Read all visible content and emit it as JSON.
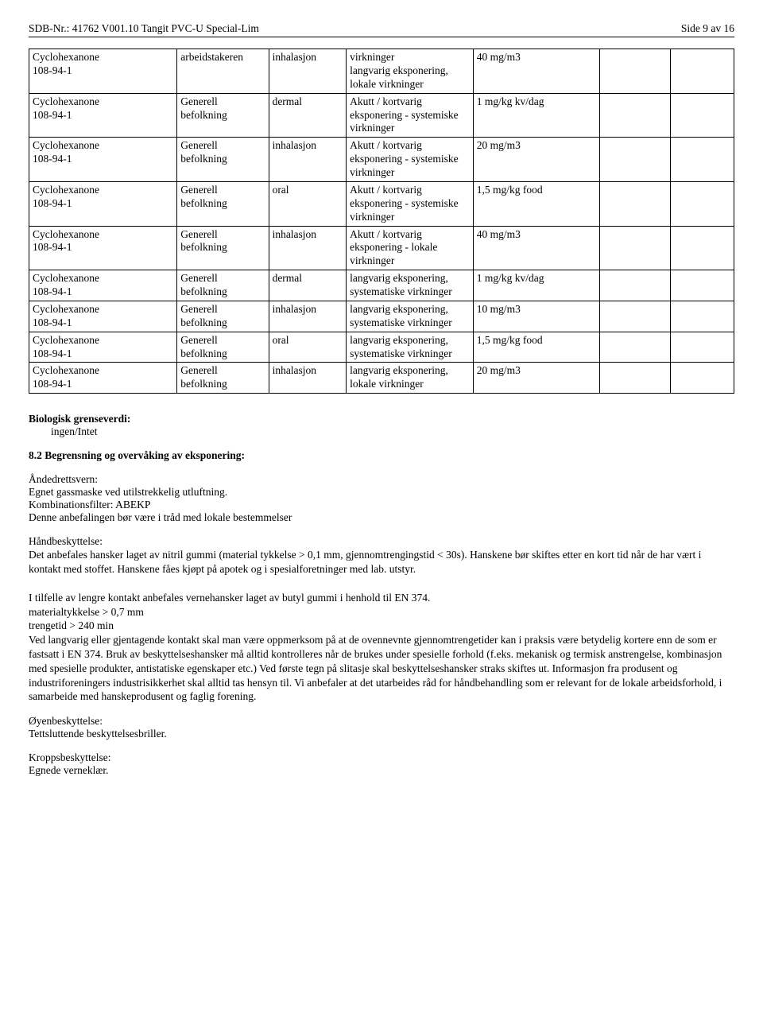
{
  "header": {
    "left": "SDB-Nr.: 41762   V001.10   Tangit PVC-U Special-Lim",
    "right": "Side 9 av 16"
  },
  "table": {
    "rows": [
      {
        "c1a": "Cyclohexanone",
        "c1b": "108-94-1",
        "c2": "arbeidstakeren",
        "c3": "inhalasjon",
        "c4": "virkninger\nlangvarig eksponering, lokale virkninger",
        "c5": "40 mg/m3"
      },
      {
        "c1a": "Cyclohexanone",
        "c1b": "108-94-1",
        "c2": "Generell befolkning",
        "c3": "dermal",
        "c4": "Akutt / kortvarig eksponering - systemiske virkninger",
        "c5": "1 mg/kg kv/dag"
      },
      {
        "c1a": "Cyclohexanone",
        "c1b": "108-94-1",
        "c2": "Generell befolkning",
        "c3": "inhalasjon",
        "c4": "Akutt / kortvarig eksponering - systemiske virkninger",
        "c5": "20 mg/m3"
      },
      {
        "c1a": "Cyclohexanone",
        "c1b": "108-94-1",
        "c2": "Generell befolkning",
        "c3": "oral",
        "c4": "Akutt / kortvarig eksponering - systemiske virkninger",
        "c5": "1,5 mg/kg food"
      },
      {
        "c1a": "Cyclohexanone",
        "c1b": "108-94-1",
        "c2": "Generell befolkning",
        "c3": "inhalasjon",
        "c4": "Akutt / kortvarig eksponering - lokale virkninger",
        "c5": "40 mg/m3"
      },
      {
        "c1a": "Cyclohexanone",
        "c1b": "108-94-1",
        "c2": "Generell befolkning",
        "c3": "dermal",
        "c4": "langvarig eksponering, systematiske virkninger",
        "c5": "1 mg/kg kv/dag"
      },
      {
        "c1a": "Cyclohexanone",
        "c1b": "108-94-1",
        "c2": "Generell befolkning",
        "c3": "inhalasjon",
        "c4": "langvarig eksponering, systematiske virkninger",
        "c5": "10 mg/m3"
      },
      {
        "c1a": "Cyclohexanone",
        "c1b": "108-94-1",
        "c2": "Generell befolkning",
        "c3": "oral",
        "c4": "langvarig eksponering, systematiske virkninger",
        "c5": "1,5 mg/kg food"
      },
      {
        "c1a": "Cyclohexanone",
        "c1b": "108-94-1",
        "c2": "Generell befolkning",
        "c3": "inhalasjon",
        "c4": "langvarig eksponering, lokale virkninger",
        "c5": "20 mg/m3"
      }
    ]
  },
  "body": {
    "biologisk_title": "Biologisk grenseverdi:",
    "biologisk_value": "ingen/Intet",
    "section82": "8.2 Begrensning og overvåking av eksponering:",
    "resp_title": "Åndedrettsvern:",
    "resp_l1": "Egnet gassmaske ved utilstrekkelig utluftning.",
    "resp_l2": "Kombinationsfilter: ABEKP",
    "resp_l3": "Denne anbefalingen bør være i tråd med lokale bestemmelser",
    "hand_title": "Håndbeskyttelse:",
    "hand_l1": "Det anbefales hansker laget av nitril gummi (material tykkelse > 0,1 mm, gjennomtrengingstid < 30s).  Hanskene bør skiftes etter en kort tid når de har vært i kontakt med stoffet. Hanskene fåes kjøpt på apotek og i spesialforetninger med lab. utstyr.",
    "hand_p2": "I tilfelle av lengre kontakt anbefales vernehansker laget av butyl gummi i henhold til EN 374.\nmaterialtykkelse > 0,7 mm\ntrengetid > 240 min\nVed langvarig eller gjentagende kontakt skal man være oppmerksom på at de ovennevnte gjennomtrengetider kan i praksis være betydelig kortere enn de som er fastsatt i EN 374. Bruk av beskyttelseshansker må alltid kontrolleres når de brukes under spesielle forhold (f.eks. mekanisk og termisk anstrengelse, kombinasjon med spesielle produkter, antistatiske egenskaper etc.) Ved første tegn på slitasje skal beskyttelseshansker straks skiftes ut. Informasjon fra produsent og industriforeningers industrisikkerhet skal alltid tas hensyn til. Vi anbefaler at det utarbeides råd for håndbehandling som er relevant for de lokale arbeidsforhold, i samarbeide med hanskeprodusent og faglig forening.",
    "eye_title": "Øyenbeskyttelse:",
    "eye_l1": "Tettsluttende beskyttelsesbriller.",
    "body_title": "Kroppsbeskyttelse:",
    "body_l1": "Egnede verneklær."
  }
}
